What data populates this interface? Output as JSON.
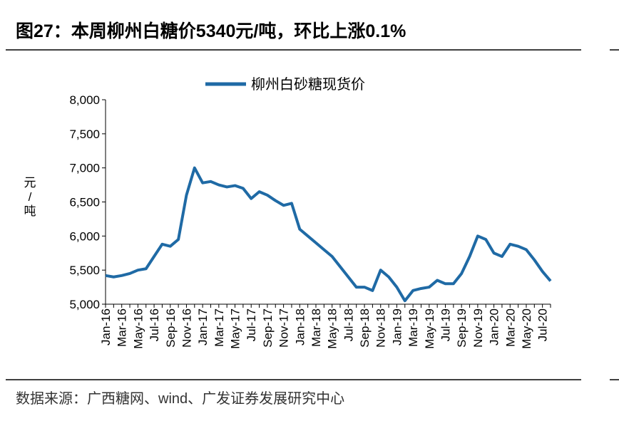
{
  "header": {
    "title": "图27：本周柳州白糖价5340元/吨，环比上涨0.1%"
  },
  "chart_data": {
    "type": "line",
    "ylabel": "元/吨",
    "categories": [
      "Jan-16",
      null,
      "Mar-16",
      null,
      "May-16",
      null,
      "Jul-16",
      null,
      "Sep-16",
      null,
      "Nov-16",
      null,
      "Jan-17",
      null,
      "Mar-17",
      null,
      "May-17",
      null,
      "Jul-17",
      null,
      "Sep-17",
      null,
      "Nov-17",
      null,
      "Jan-18",
      null,
      "Mar-18",
      null,
      "May-18",
      null,
      "Jul-18",
      null,
      "Sep-18",
      null,
      "Nov-18",
      null,
      "Jan-19",
      null,
      "Mar-19",
      null,
      "May-19",
      null,
      "Jul-19",
      null,
      "Sep-19",
      null,
      "Nov-19",
      null,
      "Jan-20",
      null,
      "Mar-20",
      null,
      "May-20",
      null,
      "Jul-20",
      null
    ],
    "series": [
      {
        "name": "柳州白砂糖现货价",
        "color": "#1f6aa5",
        "values": [
          5420,
          5400,
          5420,
          5450,
          5500,
          5520,
          5700,
          5880,
          5850,
          5950,
          6600,
          7000,
          6780,
          6800,
          6750,
          6720,
          6740,
          6700,
          6550,
          6650,
          6600,
          6520,
          6450,
          6480,
          6100,
          6000,
          5900,
          5800,
          5700,
          5550,
          5400,
          5250,
          5250,
          5200,
          5500,
          5400,
          5250,
          5050,
          5200,
          5230,
          5250,
          5350,
          5300,
          5300,
          5450,
          5700,
          6000,
          5950,
          5750,
          5700,
          5880,
          5850,
          5800,
          5650,
          5480,
          5340
        ]
      }
    ],
    "ylim": [
      5000,
      8000
    ],
    "yticks": [
      {
        "value": 5000,
        "label": "5,000"
      },
      {
        "value": 5500,
        "label": "5,500"
      },
      {
        "value": 6000,
        "label": "6,000"
      },
      {
        "value": 6500,
        "label": "6,500"
      },
      {
        "value": 7000,
        "label": "7,000"
      },
      {
        "value": 7500,
        "label": "7,500"
      },
      {
        "value": 8000,
        "label": "8,000"
      }
    ],
    "legend": "top"
  },
  "footer": {
    "source": "数据来源：广西糖网、wind、广发证券发展研究中心"
  }
}
